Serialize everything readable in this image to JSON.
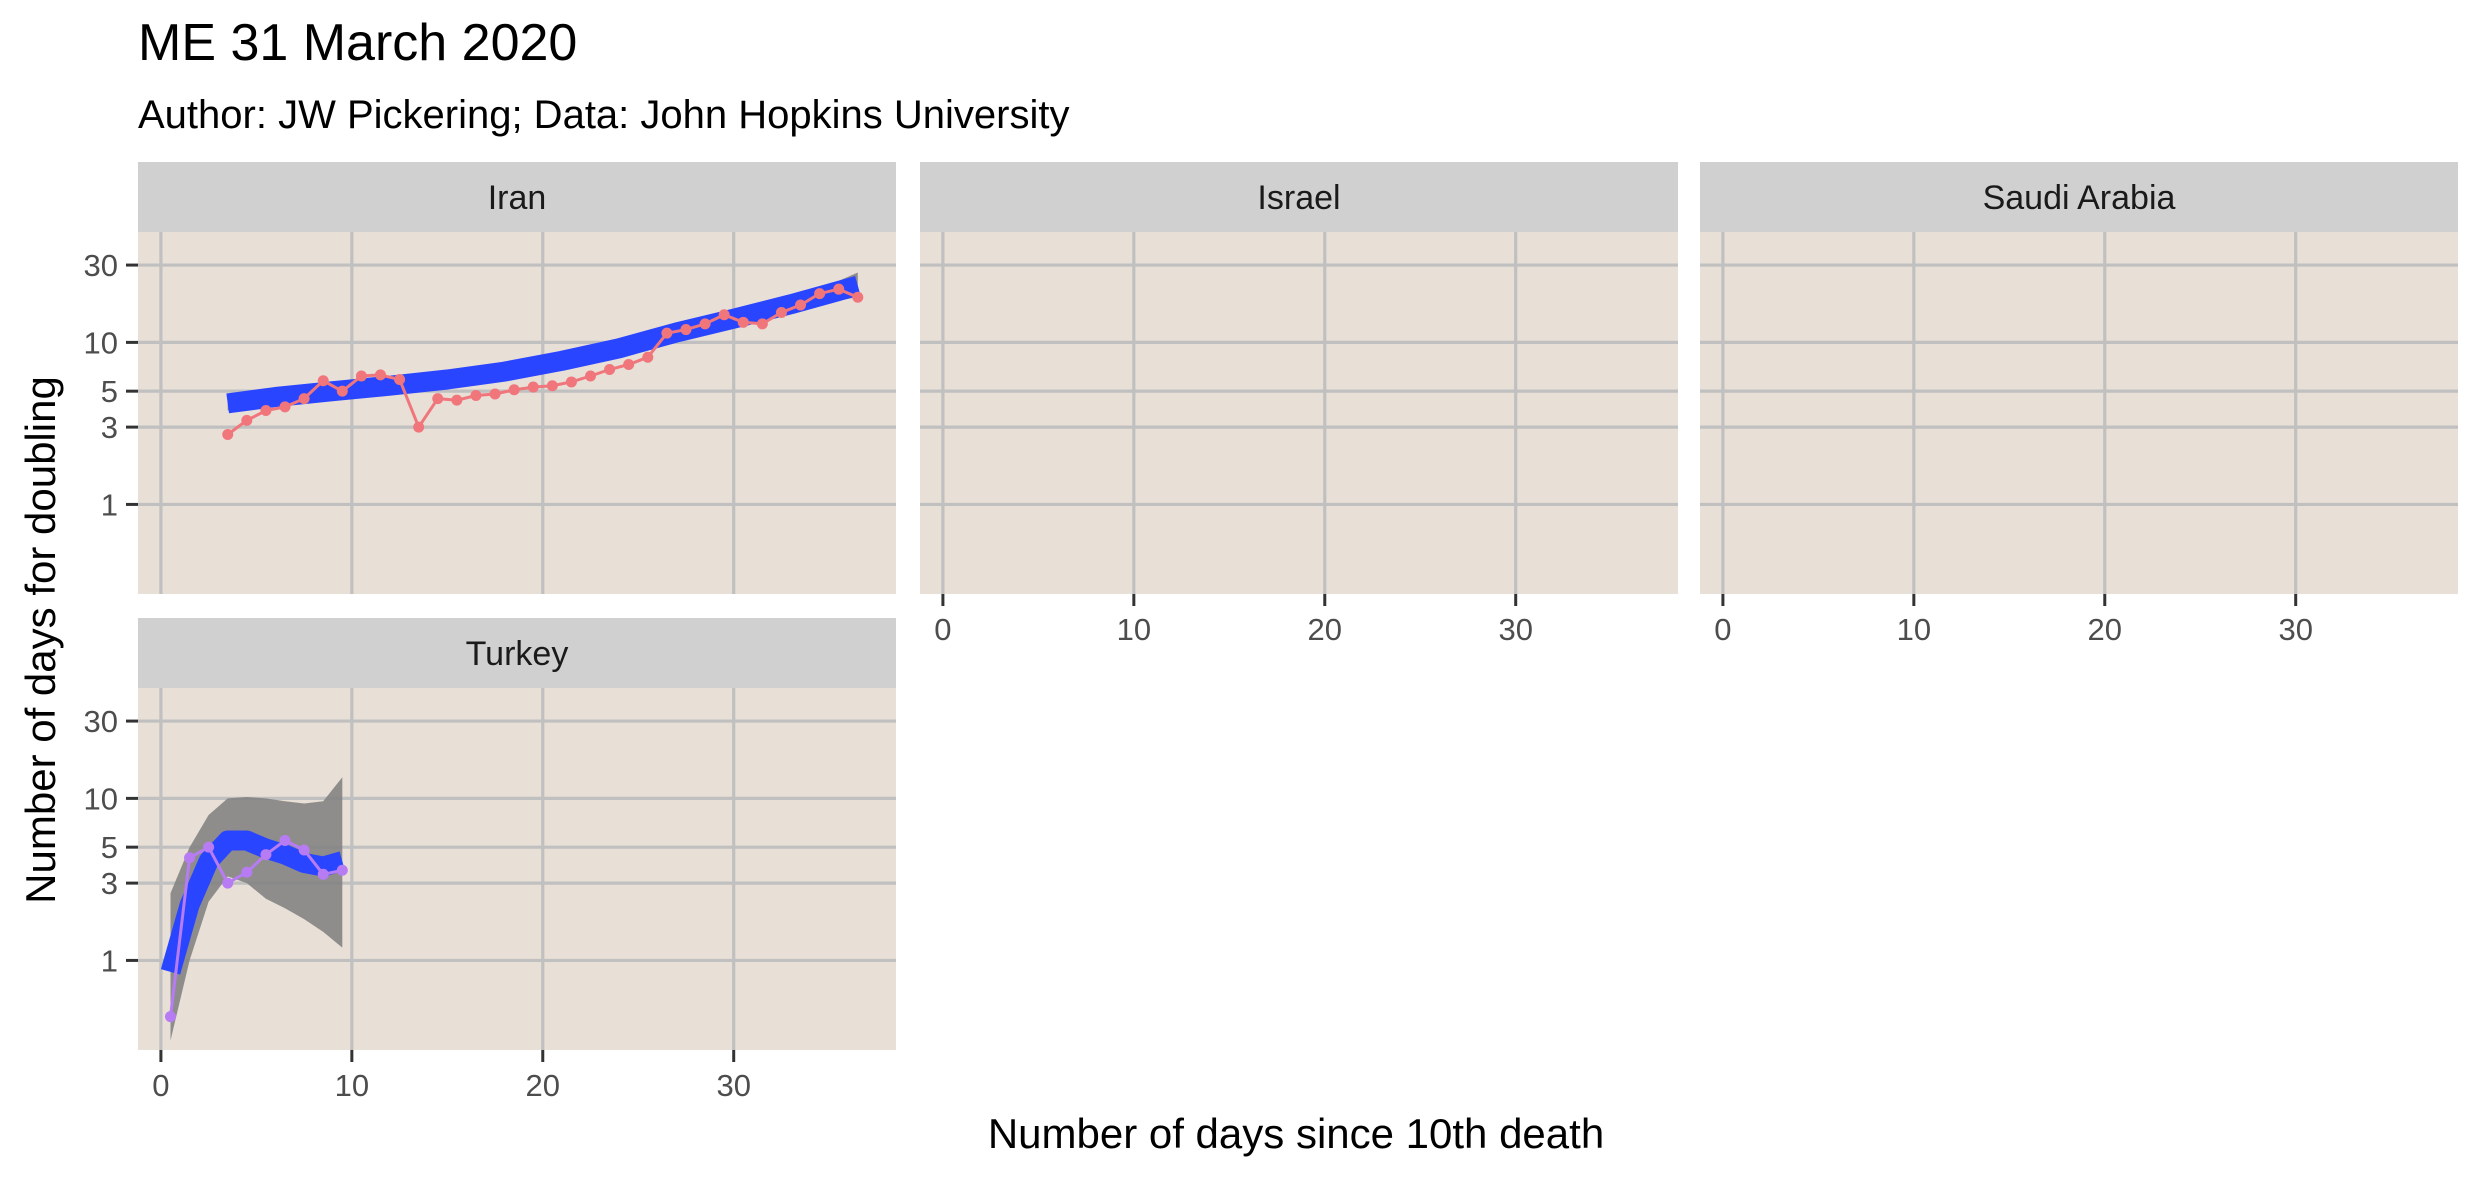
{
  "chart_data": {
    "type": "line",
    "title": "ME 31 March 2020",
    "subtitle": "Author: JW Pickering; Data: John Hopkins University",
    "xlabel": "Number of days since 10th death",
    "ylabel": "Number of days for doubling",
    "y_scale": "log",
    "xlim": [
      -1.2,
      38.5
    ],
    "ylim": [
      0.28,
      48
    ],
    "x_ticks": [
      0,
      10,
      20,
      30
    ],
    "y_ticks": [
      1,
      3,
      5,
      10,
      30
    ],
    "grid": true,
    "legend": "none",
    "colors": {
      "panel_bg": "#e8dfd7",
      "strip_bg": "#d0d0d0",
      "grid": "#c0c0c0",
      "smooth": "#2a45ff",
      "ribbon": "#7f7f7f",
      "Iran": "#f0767c",
      "Turkey": "#b77cf3"
    },
    "panels": [
      {
        "name": "Iran",
        "x": [
          3.5,
          4.5,
          5.5,
          6.5,
          7.5,
          8.5,
          9.5,
          10.5,
          11.5,
          12.5,
          13.5,
          14.5,
          15.5,
          16.5,
          17.5,
          18.5,
          19.5,
          20.5,
          21.5,
          22.5,
          23.5,
          24.5,
          25.5,
          26.5,
          27.5,
          28.5,
          29.5,
          30.5,
          31.5,
          32.5,
          33.5,
          34.5,
          35.5,
          36.5
        ],
        "y": [
          2.7,
          3.3,
          3.8,
          4.0,
          4.5,
          5.8,
          5.0,
          6.2,
          6.3,
          5.9,
          3.0,
          4.5,
          4.4,
          4.7,
          4.8,
          5.1,
          5.3,
          5.4,
          5.7,
          6.2,
          6.8,
          7.3,
          8.1,
          11.4,
          12.0,
          13.0,
          14.8,
          13.3,
          13.0,
          15.3,
          17.0,
          20.0,
          21.3,
          19.0
        ],
        "smooth": {
          "x": [
            3.5,
            6,
            9,
            12,
            15,
            18,
            21,
            24,
            27,
            30,
            33,
            35,
            36.5
          ],
          "y": [
            4.2,
            4.6,
            5.0,
            5.4,
            5.9,
            6.6,
            7.7,
            9.2,
            11.5,
            14.0,
            17.2,
            20.0,
            22.4
          ],
          "ymin": [
            3.8,
            4.2,
            4.6,
            5.0,
            5.5,
            6.1,
            7.1,
            8.5,
            10.6,
            12.9,
            15.6,
            17.8,
            19.0
          ],
          "ymax": [
            4.7,
            5.0,
            5.4,
            5.9,
            6.4,
            7.1,
            8.3,
            10.0,
            12.5,
            15.4,
            19.0,
            22.6,
            27.0
          ]
        }
      },
      {
        "name": "Israel",
        "x": [],
        "y": []
      },
      {
        "name": "Saudi Arabia",
        "x": [],
        "y": []
      },
      {
        "name": "Turkey",
        "x": [
          0.5,
          1.5,
          2.5,
          3.5,
          4.5,
          5.5,
          6.5,
          7.5,
          8.5,
          9.5
        ],
        "y": [
          0.45,
          4.3,
          5.0,
          3.0,
          3.5,
          4.5,
          5.5,
          4.8,
          3.4,
          3.6
        ],
        "smooth": {
          "x": [
            0.5,
            1.5,
            2.5,
            3.5,
            4.5,
            5.5,
            6.5,
            7.5,
            8.5,
            9.5
          ],
          "y": [
            0.85,
            2.2,
            4.1,
            5.5,
            5.5,
            4.9,
            4.5,
            4.0,
            3.8,
            4.1
          ],
          "ymin": [
            0.32,
            1.0,
            2.3,
            3.3,
            3.0,
            2.4,
            2.1,
            1.8,
            1.5,
            1.2
          ],
          "ymax": [
            2.6,
            5.0,
            7.9,
            10.0,
            10.2,
            10.0,
            9.6,
            9.3,
            9.6,
            13.5
          ]
        }
      }
    ]
  }
}
